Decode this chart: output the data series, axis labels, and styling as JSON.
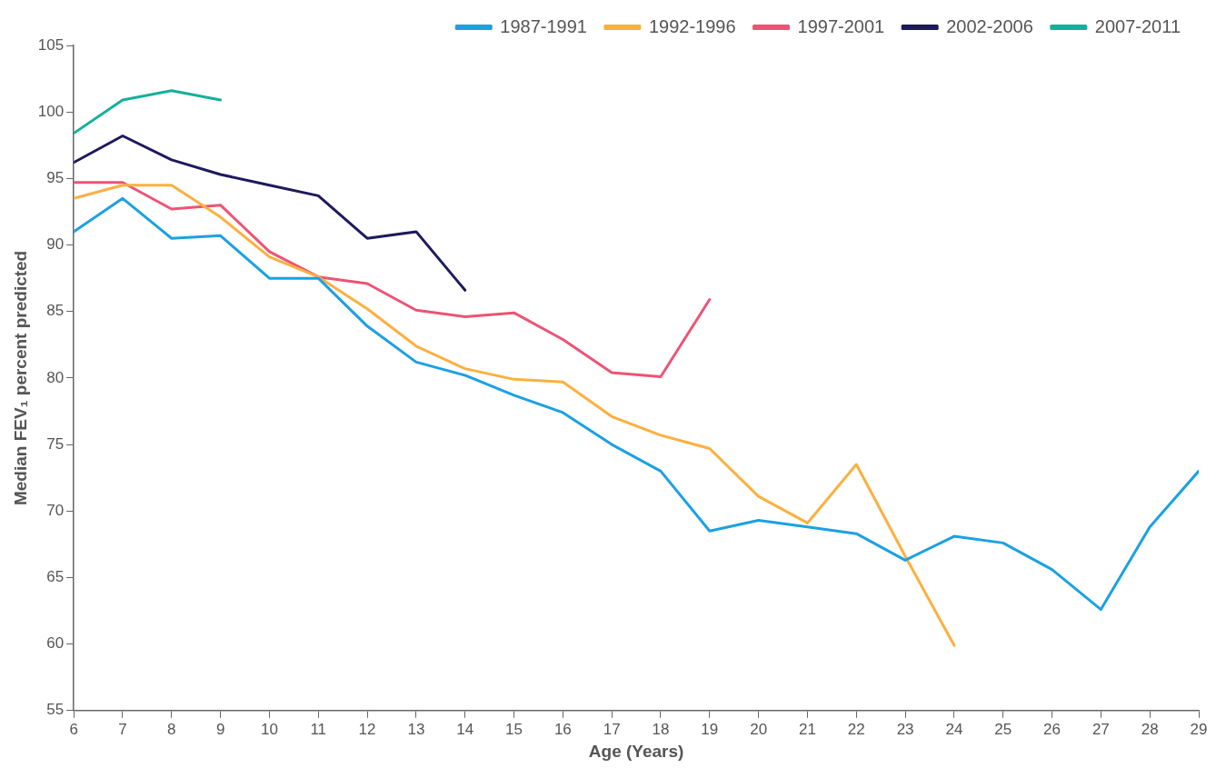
{
  "chart_data": {
    "type": "line",
    "xlabel": "Age (Years)",
    "ylabel": "Median FEV₁ percent predicted",
    "x": [
      6,
      7,
      8,
      9,
      10,
      11,
      12,
      13,
      14,
      15,
      16,
      17,
      18,
      19,
      20,
      21,
      22,
      23,
      24,
      25,
      26,
      27,
      28,
      29
    ],
    "xlim": [
      6,
      29
    ],
    "xticks": [
      6,
      7,
      8,
      9,
      10,
      11,
      12,
      13,
      14,
      15,
      16,
      17,
      18,
      19,
      20,
      21,
      22,
      23,
      24,
      25,
      26,
      27,
      28,
      29
    ],
    "ylim": [
      55,
      105
    ],
    "yticks": [
      55,
      60,
      65,
      70,
      75,
      80,
      85,
      90,
      95,
      100,
      105
    ],
    "grid": false,
    "legend": "top right",
    "marker": "none",
    "line_style": "solid",
    "series": [
      {
        "name": "1987-1991",
        "color": "#1ba1e2",
        "values": [
          91.0,
          93.5,
          90.5,
          90.7,
          87.5,
          87.5,
          83.9,
          81.2,
          80.2,
          78.7,
          77.4,
          75.0,
          73.0,
          68.5,
          69.3,
          68.8,
          68.3,
          66.3,
          68.1,
          67.6,
          65.6,
          62.6,
          68.8,
          73.0
        ]
      },
      {
        "name": "1992-1996",
        "color": "#fbb040",
        "values": [
          93.5,
          94.5,
          94.5,
          92.1,
          89.1,
          87.6,
          85.2,
          82.4,
          80.7,
          79.9,
          79.7,
          77.1,
          75.7,
          74.7,
          71.1,
          69.1,
          73.5,
          66.6,
          59.9,
          null,
          null,
          null,
          null,
          null
        ]
      },
      {
        "name": "1997-2001",
        "color": "#ec5475",
        "values": [
          94.7,
          94.7,
          92.7,
          93.0,
          89.5,
          87.6,
          87.1,
          85.1,
          84.6,
          84.9,
          82.9,
          80.4,
          80.1,
          85.9,
          null,
          null,
          null,
          null,
          null,
          null,
          null,
          null,
          null,
          null
        ]
      },
      {
        "name": "2002-2006",
        "color": "#1d1a5c",
        "values": [
          96.2,
          98.2,
          96.4,
          95.3,
          94.5,
          93.7,
          90.5,
          91.0,
          86.6,
          null,
          null,
          null,
          null,
          null,
          null,
          null,
          null,
          null,
          null,
          null,
          null,
          null,
          null,
          null
        ]
      },
      {
        "name": "2007-2011",
        "color": "#16b09a",
        "values": [
          98.4,
          100.9,
          101.6,
          100.9,
          null,
          null,
          null,
          null,
          null,
          null,
          null,
          null,
          null,
          null,
          null,
          null,
          null,
          null,
          null,
          null,
          null,
          null,
          null,
          null
        ]
      }
    ]
  }
}
